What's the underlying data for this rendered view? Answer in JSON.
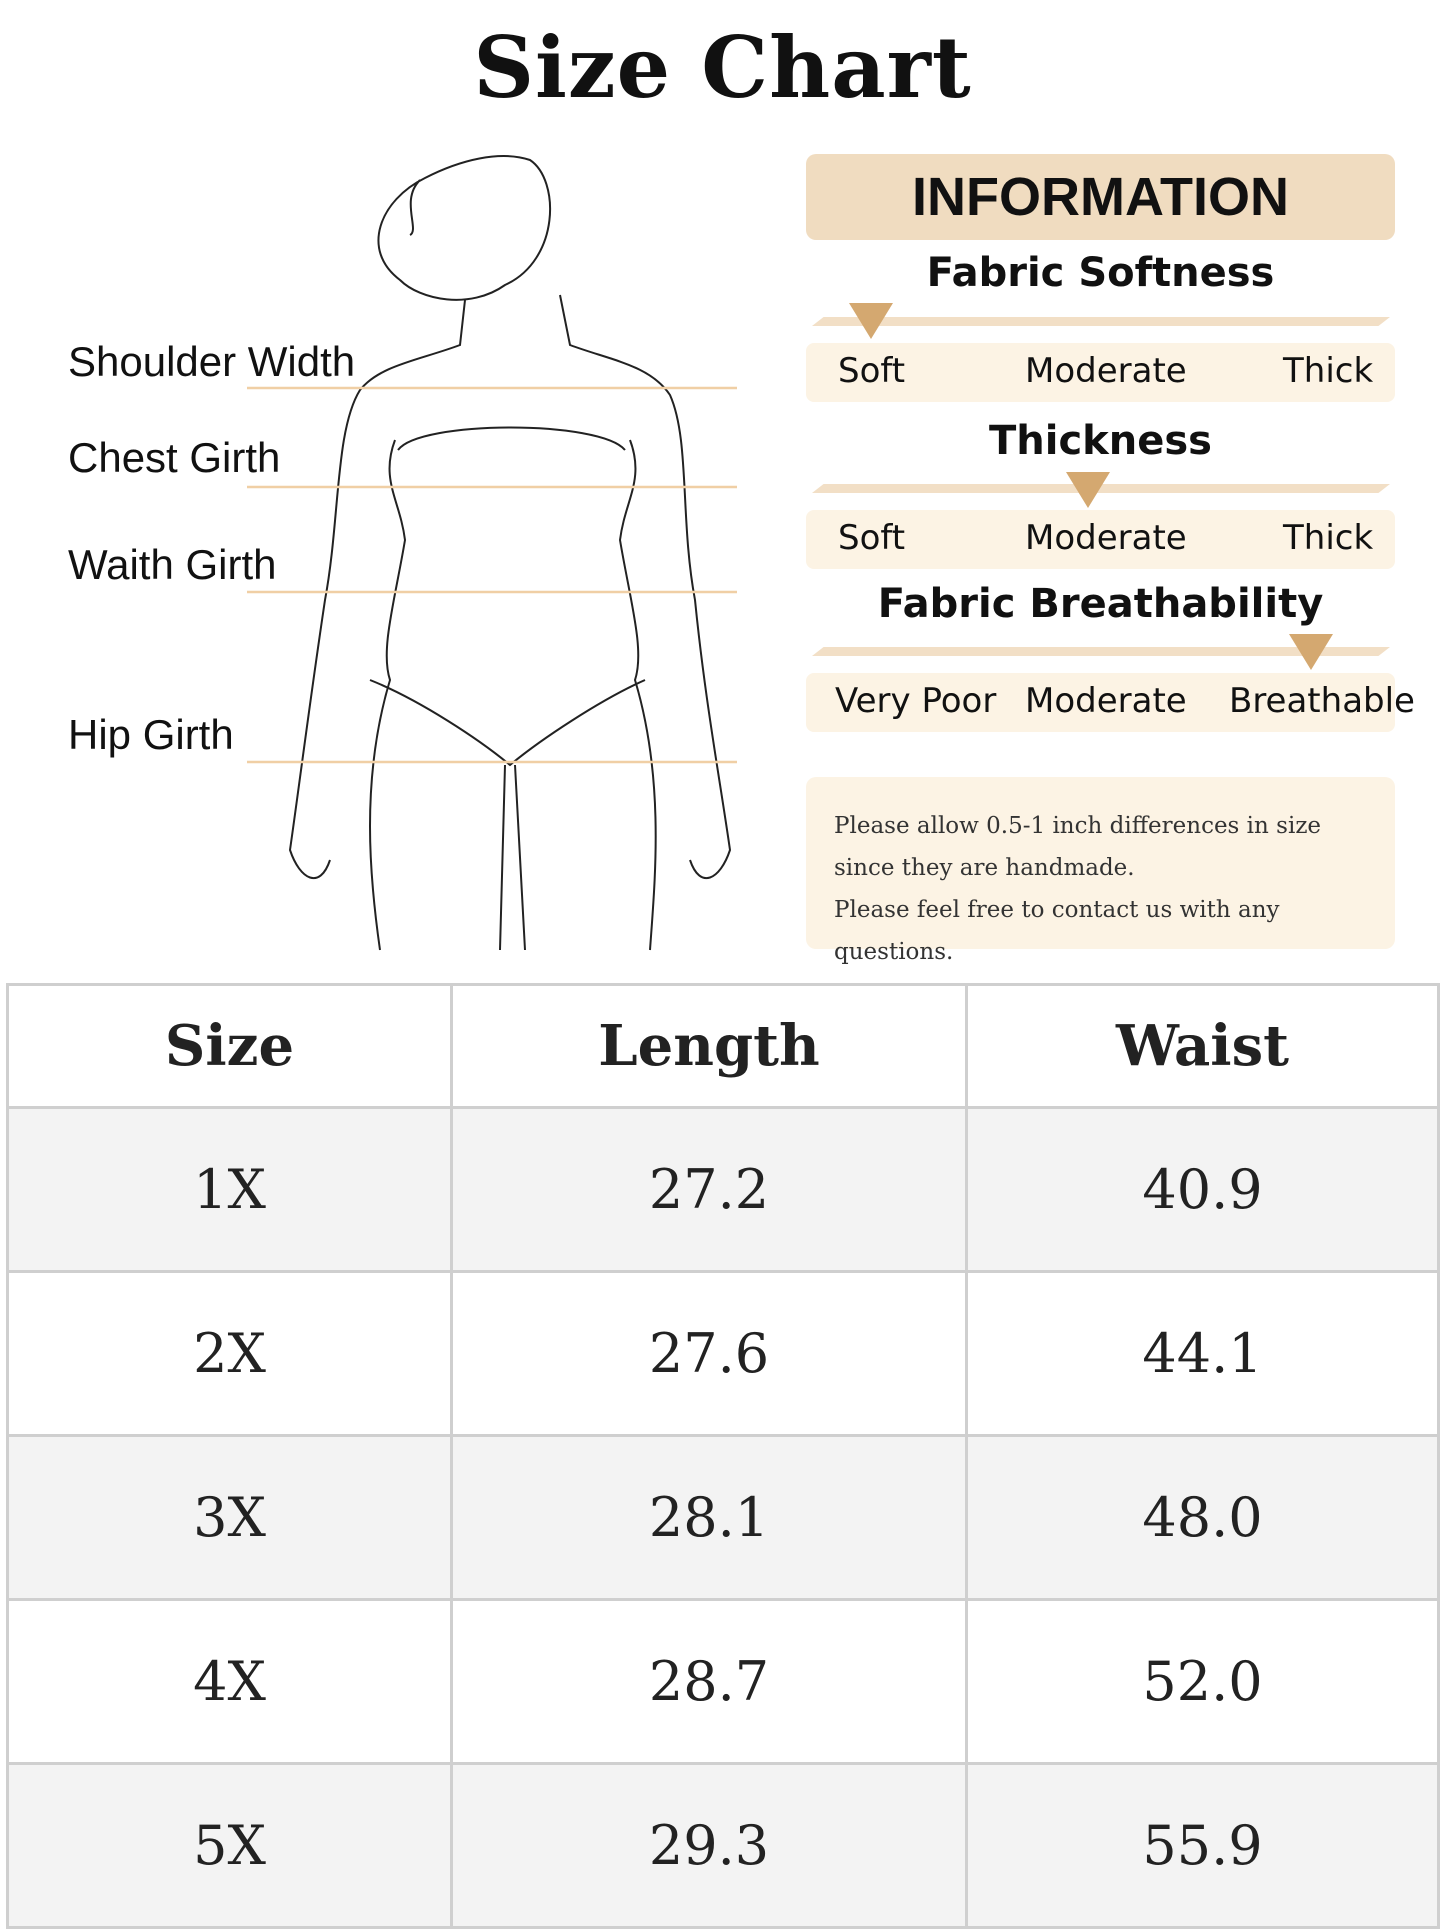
{
  "title": "Size Chart",
  "measurements": [
    "Shoulder Width",
    "Chest Girth",
    "Waith Girth",
    "Hip Girth"
  ],
  "info": {
    "header": "INFORMATION",
    "sections": [
      {
        "title": "Fabric Softness",
        "labels": [
          "Soft",
          "Moderate",
          "Thick"
        ],
        "selected": "Soft",
        "level": 0
      },
      {
        "title": "Thickness",
        "labels": [
          "Soft",
          "Moderate",
          "Thick"
        ],
        "selected": "Moderate",
        "level": 0.5
      },
      {
        "title": "Fabric Breathability",
        "labels": [
          "Very Poor",
          "Moderate",
          "Breathable"
        ],
        "selected": "Breathable",
        "level": 0.85
      }
    ],
    "note": [
      "Please allow 0.5-1 inch differences in size",
      "since they are handmade.",
      "Please feel free to contact us with any questions."
    ],
    "accent": "#d4a870"
  },
  "table": {
    "headers": [
      "Size",
      "Length",
      "Waist"
    ],
    "rows": [
      [
        "1X",
        "27.2",
        "40.9"
      ],
      [
        "2X",
        "27.6",
        "44.1"
      ],
      [
        "3X",
        "28.1",
        "48.0"
      ],
      [
        "4X",
        "28.7",
        "52.0"
      ],
      [
        "5X",
        "29.3",
        "55.9"
      ]
    ]
  }
}
